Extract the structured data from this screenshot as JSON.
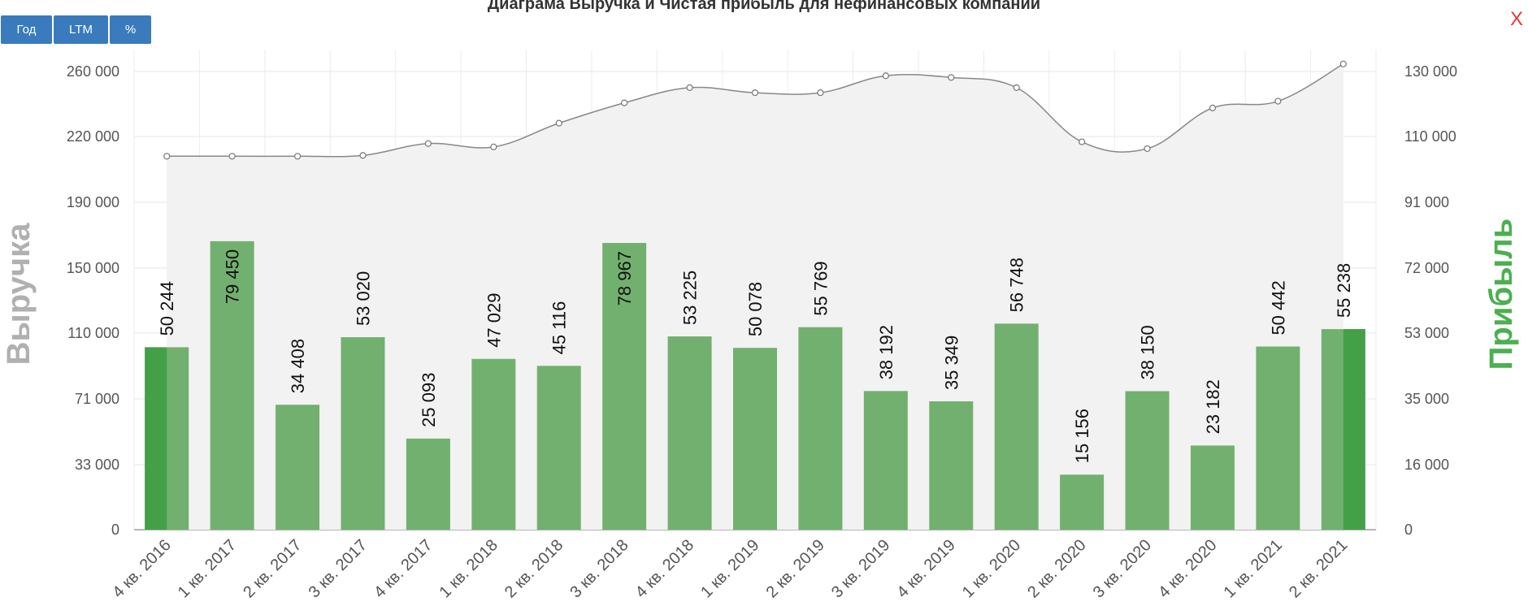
{
  "title": "Диаграма Выручка и Чистая прибыль для нефинансовых компаний",
  "toolbar": {
    "year_label": "Год",
    "ltm_label": "LTM",
    "percent_label": "%"
  },
  "close_label": "X",
  "colors": {
    "bar": "#72b06f",
    "bar_dark": "#43a047",
    "line": "#888888",
    "area": "#f2f2f2",
    "button": "#3a7bbd",
    "profit_axis_label": "#4caf50",
    "revenue_axis_label": "#b0b0b0"
  },
  "chart_data": {
    "type": "bar",
    "title": "Диаграма Выручка и Чистая прибыль для нефинансовых компаний",
    "ylabel": "Выручка",
    "y2label": "Прибыль",
    "categories": [
      "4 кв. 2016",
      "1 кв. 2017",
      "2 кв. 2017",
      "3 кв. 2017",
      "4 кв. 2017",
      "1 кв. 2018",
      "2 кв. 2018",
      "3 кв. 2018",
      "4 кв. 2018",
      "1 кв. 2019",
      "2 кв. 2019",
      "3 кв. 2019",
      "4 кв. 2019",
      "1 кв. 2020",
      "2 кв. 2020",
      "3 кв. 2020",
      "4 кв. 2020",
      "1 кв. 2021",
      "2 кв. 2021"
    ],
    "y_ticks": [
      "0",
      "33 000",
      "71 000",
      "110 000",
      "150 000",
      "190 000",
      "220 000",
      "260 000"
    ],
    "y2_ticks": [
      "0",
      "16 000",
      "35 000",
      "53 000",
      "72 000",
      "91 000",
      "110 000",
      "130 000"
    ],
    "series": [
      {
        "name": "Прибыль",
        "axis": "right",
        "kind": "bar",
        "values": [
          50244,
          79450,
          34408,
          53020,
          25093,
          47029,
          45116,
          78967,
          53225,
          50078,
          55769,
          38192,
          35349,
          56748,
          15156,
          38150,
          23182,
          50442,
          55238
        ],
        "labels": [
          "50 244",
          "79 450",
          "34 408",
          "53 020",
          "25 093",
          "47 029",
          "45 116",
          "78 967",
          "53 225",
          "50 078",
          "55 769",
          "38 192",
          "35 349",
          "56 748",
          "15 156",
          "38 150",
          "23 182",
          "50 442",
          "55 238"
        ]
      },
      {
        "name": "Выручка",
        "axis": "left",
        "kind": "area-line",
        "values": [
          220500,
          220500,
          220500,
          221000,
          228000,
          226000,
          240000,
          252000,
          261000,
          258000,
          258000,
          268000,
          267000,
          261000,
          229000,
          225000,
          249000,
          253000,
          275000
        ]
      }
    ],
    "ylim": [
      0,
      283000
    ],
    "y2lim": [
      0,
      132000
    ],
    "grid": true,
    "legend": "none"
  }
}
